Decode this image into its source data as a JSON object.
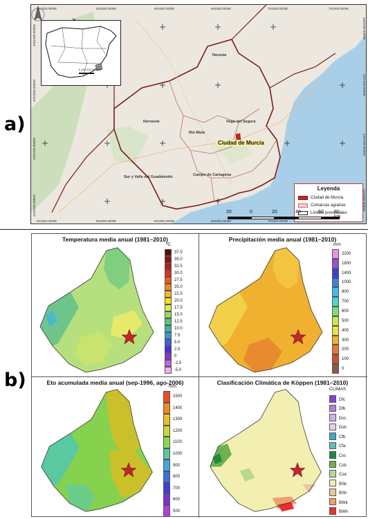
{
  "labels": {
    "a": "a)",
    "b": "b)"
  },
  "map_a": {
    "top_coords": [
      "501000.0000E",
      "551000.0000E",
      "601000.0000E",
      "651000.0000E",
      "701000.0000E",
      "751000.0000E"
    ],
    "bottom_coords": [
      "501000.0000E",
      "551000.0000E",
      "601000.0000E",
      "651000.0000E",
      "701000.0000E",
      "751000.0000E"
    ],
    "left_coords": [
      "4301000.0000N",
      "4251000.0000N",
      "4201000.0000N",
      "4151000.0000N"
    ],
    "right_coords": [
      "4301000.0000N",
      "4251000.0000N",
      "4201000.0000N",
      "4151000.0000N"
    ],
    "regions": [
      "Noroeste",
      "Noreste",
      "Vega del Segura",
      "Río Mula",
      "Sur y Valle del Guadalentín",
      "Campo de Cartagena"
    ],
    "city": "Ciudad de Murcia",
    "inset_scale": "0  100  200 300 km",
    "legend": {
      "title": "Leyenda",
      "items": [
        {
          "label": "Ciudad de Murcia",
          "color": "#d11f1f"
        },
        {
          "label": "Comarcas agrarias",
          "color": "#f7d3d3"
        },
        {
          "label": "Límites provinciales",
          "color": "#ffffff"
        }
      ]
    },
    "scale": [
      "20",
      "0",
      "20",
      "40",
      "60",
      "80 km"
    ]
  },
  "panels": {
    "temp": {
      "title": "Temperatura media anual (1981–2010)",
      "unit": "ºC",
      "labels": [
        "37.5",
        "35.0",
        "32.5",
        "30.0",
        "27.5",
        "25.0",
        "22.5",
        "20.0",
        "17.5",
        "15.0",
        "12.5",
        "10.0",
        "7.5",
        "5.0",
        "2.5",
        "0",
        "-2.5",
        "-5.0"
      ],
      "colors": [
        "#5c0a0a",
        "#8b1414",
        "#b81c1c",
        "#e0301e",
        "#f05a1e",
        "#f7861e",
        "#f7b81e",
        "#f7e01e",
        "#d9ef3a",
        "#9ad860",
        "#5cc87a",
        "#3ab8a8",
        "#3a98d8",
        "#3a60e0",
        "#4a30d8",
        "#8a30e0",
        "#c860e0",
        "#f0b0f0"
      ]
    },
    "precip": {
      "title": "Precipitación media anual (1981–2010)",
      "unit": "mm",
      "labels": [
        "2200",
        "1800",
        "1400",
        "1000",
        "800",
        "700",
        "600",
        "500",
        "400",
        "300",
        "200",
        "100",
        "0"
      ],
      "colors": [
        "#f090e0",
        "#9a50d8",
        "#3a40d8",
        "#3a80e8",
        "#4ab8e8",
        "#4ad8c8",
        "#7ae070",
        "#c8e850",
        "#f0e040",
        "#f0b030",
        "#e87a30",
        "#c85030",
        "#8a5a4a"
      ]
    },
    "eto": {
      "title": "Eto acumulada media anual (sep-1996, ago-2006)",
      "unit": "mm",
      "labels": [
        "1500",
        "1400",
        "1300",
        "1200",
        "1100",
        "1000",
        "900",
        "800",
        "700",
        "600",
        "500"
      ],
      "colors": [
        "#f04a1e",
        "#f08a1e",
        "#e8c020",
        "#c8d830",
        "#8ad850",
        "#5ac8a0",
        "#40a8e0",
        "#3a70e0",
        "#3a40d8",
        "#7a30d8",
        "#b040d8"
      ]
    },
    "koppen": {
      "title": "Clasificación Climática de Köppen (1981–2010)",
      "unit": "CLIMAS",
      "labels": [
        "Dfc",
        "Dfb",
        "Dsc",
        "Dsb",
        "Cfb",
        "Cfa",
        "Csc",
        "Csb",
        "Csa",
        "BSk",
        "BSh",
        "BWk",
        "BWh"
      ],
      "colors": [
        "#8a40d8",
        "#b080e0",
        "#d0b0e8",
        "#e8d0e8",
        "#40a8c8",
        "#60c0b0",
        "#208a40",
        "#70b050",
        "#b8d890",
        "#f3efb0",
        "#e8c8a0",
        "#f0a070",
        "#e83030"
      ]
    }
  }
}
